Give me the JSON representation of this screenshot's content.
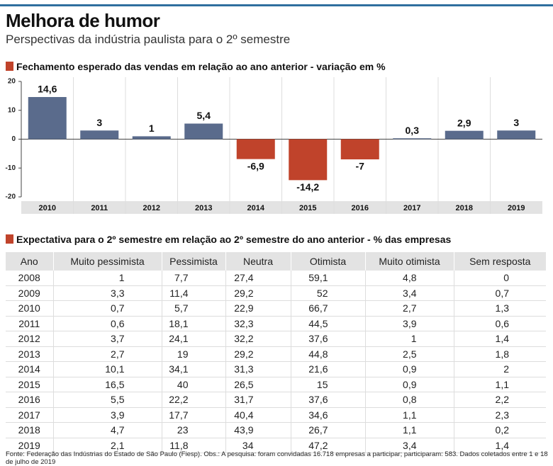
{
  "header": {
    "title": "Melhora de humor",
    "subtitle": "Perspectivas da indústria paulista para o 2º semestre"
  },
  "chart_data": {
    "type": "bar",
    "title": "Fechamento esperado das vendas em relação ao ano anterior - variação em %",
    "categories": [
      "2010",
      "2011",
      "2012",
      "2013",
      "2014",
      "2015",
      "2016",
      "2017",
      "2018",
      "2019"
    ],
    "values": [
      14.6,
      3,
      1,
      5.4,
      -6.9,
      -14.2,
      -7,
      0.3,
      2.9,
      3
    ],
    "value_labels": [
      "14,6",
      "3",
      "1",
      "5,4",
      "-6,9",
      "-14,2",
      "-7",
      "0,3",
      "2,9",
      "3"
    ],
    "color": "#5a6b8c",
    "negative_color": "#c0432b",
    "ylim": [
      -20,
      20
    ],
    "yticks": [
      20,
      10,
      0,
      -10,
      -20
    ],
    "grid": false
  },
  "table": {
    "title": "Expectativa para o 2º semestre em relação ao 2º semestre do ano anterior - % das empresas",
    "columns": [
      "Ano",
      "Muito pessimista",
      "Pessimista",
      "Neutra",
      "Otimista",
      "Muito otimista",
      "Sem resposta"
    ],
    "rows": [
      [
        "2008",
        "1",
        "7,7",
        "27,4",
        "59,1",
        "4,8",
        "0"
      ],
      [
        "2009",
        "3,3",
        "11,4",
        "29,2",
        "52",
        "3,4",
        "0,7"
      ],
      [
        "2010",
        "0,7",
        "5,7",
        "22,9",
        "66,7",
        "2,7",
        "1,3"
      ],
      [
        "2011",
        "0,6",
        "18,1",
        "32,3",
        "44,5",
        "3,9",
        "0,6"
      ],
      [
        "2012",
        "3,7",
        "24,1",
        "32,2",
        "37,6",
        "1",
        "1,4"
      ],
      [
        "2013",
        "2,7",
        "19",
        "29,2",
        "44,8",
        "2,5",
        "1,8"
      ],
      [
        "2014",
        "10,1",
        "34,1",
        "31,3",
        "21,6",
        "0,9",
        "2"
      ],
      [
        "2015",
        "16,5",
        "40",
        "26,5",
        "15",
        "0,9",
        "1,1"
      ],
      [
        "2016",
        "5,5",
        "22,2",
        "31,7",
        "37,6",
        "0,8",
        "2,2"
      ],
      [
        "2017",
        "3,9",
        "17,7",
        "40,4",
        "34,6",
        "1,1",
        "2,3"
      ],
      [
        "2018",
        "4,7",
        "23",
        "43,9",
        "26,7",
        "1,1",
        "0,2"
      ],
      [
        "2019",
        "2,1",
        "11,8",
        "34",
        "47,2",
        "3,4",
        "1,4"
      ]
    ]
  },
  "source": "Fonte:  Federação das Indústrias do Estado de São Paulo (Fiesp). Obs.: A pesquisa: foram convidadas 16.718 empresas a participar; participaram: 583. Dados coletados entre 1 e 18 de julho de 2019"
}
